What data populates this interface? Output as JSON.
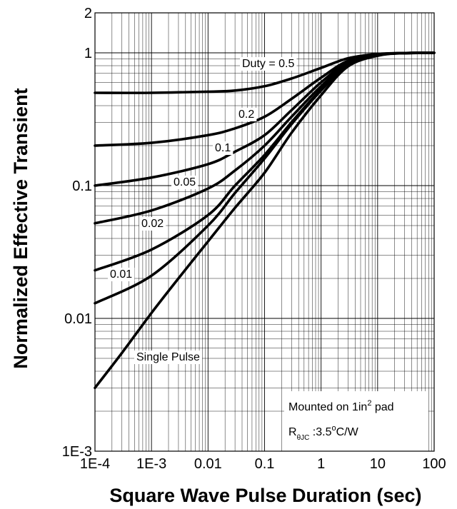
{
  "chart_data": {
    "type": "line",
    "title": "",
    "xlabel": "Square Wave Pulse Duration (sec)",
    "ylabel": "Normalized Effective Transient",
    "x_scale": "log",
    "y_scale": "log",
    "xlim": [
      0.0001,
      100
    ],
    "ylim": [
      0.001,
      2
    ],
    "grid": true,
    "x_tick_labels": [
      "1E-4",
      "1E-3",
      "0.01",
      "0.1",
      "1",
      "10",
      "100"
    ],
    "y_tick_labels": [
      "1E-3",
      "0.01",
      "0.1",
      "1",
      "2"
    ],
    "series": [
      {
        "name": "Duty = 0.5",
        "points": [
          [
            0.0001,
            0.5
          ],
          [
            0.001,
            0.5
          ],
          [
            0.01,
            0.51
          ],
          [
            0.03,
            0.52
          ],
          [
            0.1,
            0.56
          ],
          [
            0.3,
            0.64
          ],
          [
            1,
            0.77
          ],
          [
            3,
            0.91
          ],
          [
            10,
            0.98
          ],
          [
            30,
            0.995
          ],
          [
            100,
            1.0
          ]
        ]
      },
      {
        "name": "0.2",
        "points": [
          [
            0.0001,
            0.2
          ],
          [
            0.001,
            0.21
          ],
          [
            0.01,
            0.24
          ],
          [
            0.03,
            0.27
          ],
          [
            0.1,
            0.33
          ],
          [
            0.3,
            0.45
          ],
          [
            1,
            0.65
          ],
          [
            3,
            0.87
          ],
          [
            10,
            0.97
          ],
          [
            30,
            0.995
          ],
          [
            100,
            1.0
          ]
        ]
      },
      {
        "name": "0.1",
        "points": [
          [
            0.0001,
            0.1
          ],
          [
            0.001,
            0.115
          ],
          [
            0.01,
            0.145
          ],
          [
            0.03,
            0.18
          ],
          [
            0.1,
            0.24
          ],
          [
            0.3,
            0.37
          ],
          [
            1,
            0.6
          ],
          [
            3,
            0.85
          ],
          [
            10,
            0.97
          ],
          [
            30,
            0.995
          ],
          [
            100,
            1.0
          ]
        ]
      },
      {
        "name": "0.05",
        "points": [
          [
            0.0001,
            0.052
          ],
          [
            0.001,
            0.065
          ],
          [
            0.01,
            0.095
          ],
          [
            0.03,
            0.13
          ],
          [
            0.1,
            0.2
          ],
          [
            0.3,
            0.33
          ],
          [
            1,
            0.56
          ],
          [
            3,
            0.83
          ],
          [
            10,
            0.96
          ],
          [
            30,
            0.995
          ],
          [
            100,
            1.0
          ]
        ]
      },
      {
        "name": "0.02",
        "points": [
          [
            0.0001,
            0.023
          ],
          [
            0.001,
            0.033
          ],
          [
            0.01,
            0.06
          ],
          [
            0.03,
            0.1
          ],
          [
            0.1,
            0.17
          ],
          [
            0.3,
            0.3
          ],
          [
            1,
            0.53
          ],
          [
            3,
            0.82
          ],
          [
            10,
            0.96
          ],
          [
            30,
            0.995
          ],
          [
            100,
            1.0
          ]
        ]
      },
      {
        "name": "0.01",
        "points": [
          [
            0.0001,
            0.013
          ],
          [
            0.001,
            0.021
          ],
          [
            0.01,
            0.05
          ],
          [
            0.03,
            0.088
          ],
          [
            0.1,
            0.16
          ],
          [
            0.3,
            0.29
          ],
          [
            1,
            0.52
          ],
          [
            3,
            0.81
          ],
          [
            10,
            0.96
          ],
          [
            30,
            0.995
          ],
          [
            100,
            1.0
          ]
        ]
      },
      {
        "name": "Single Pulse",
        "points": [
          [
            0.0001,
            0.003
          ],
          [
            0.0003,
            0.0055
          ],
          [
            0.001,
            0.011
          ],
          [
            0.003,
            0.02
          ],
          [
            0.01,
            0.038
          ],
          [
            0.03,
            0.068
          ],
          [
            0.1,
            0.125
          ],
          [
            0.3,
            0.25
          ],
          [
            1,
            0.48
          ],
          [
            3,
            0.79
          ],
          [
            10,
            0.95
          ],
          [
            30,
            0.995
          ],
          [
            100,
            1.0
          ]
        ]
      }
    ],
    "annotations": {
      "mounted": {
        "prefix": "Mounted on 1in",
        "sup": "2",
        "suffix": " pad"
      },
      "rth": {
        "prefix": "R",
        "sub": "θJC",
        "value": " :3.5",
        "sup": "o",
        "unit": "C/W"
      }
    }
  }
}
